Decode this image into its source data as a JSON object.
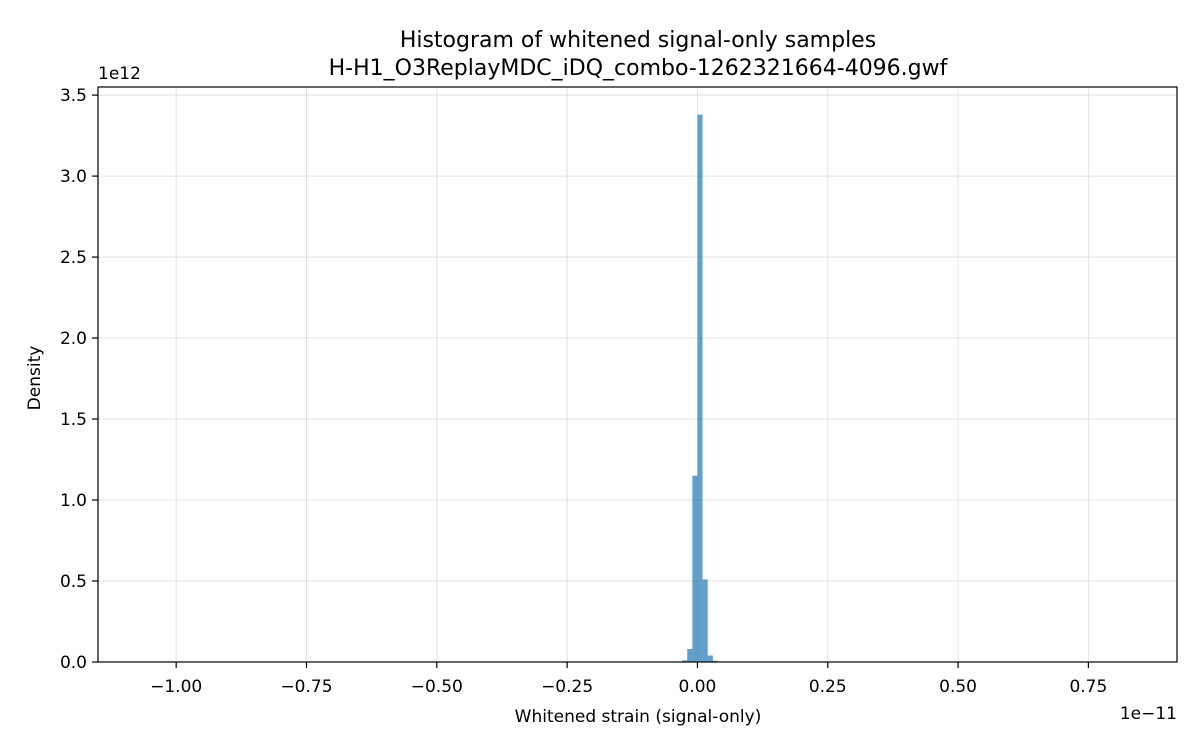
{
  "chart_data": {
    "type": "bar",
    "title": "Histogram of whitened signal-only samples",
    "subtitle": "H-H1_O3ReplayMDC_iDQ_combo-1262321664-4096.gwf",
    "xlabel": "Whitened strain (signal-only)",
    "ylabel": "Density",
    "x_offset_label": "1e−11",
    "y_offset_label": "1e12",
    "xlim": [
      -1.15e-11,
      9.2e-12
    ],
    "ylim": [
      0,
      3550000000000.0
    ],
    "grid": true,
    "x_ticks": [
      {
        "value": -1e-11,
        "label": "−1.00"
      },
      {
        "value": -7.5e-12,
        "label": "−0.75"
      },
      {
        "value": -5e-12,
        "label": "−0.50"
      },
      {
        "value": -2.5e-12,
        "label": "−0.25"
      },
      {
        "value": 0.0,
        "label": "0.00"
      },
      {
        "value": 2.5e-12,
        "label": "0.25"
      },
      {
        "value": 5e-12,
        "label": "0.50"
      },
      {
        "value": 7.5e-12,
        "label": "0.75"
      }
    ],
    "y_ticks": [
      {
        "value": 0.0,
        "label": "0.0"
      },
      {
        "value": 500000000000.0,
        "label": "0.5"
      },
      {
        "value": 1000000000000.0,
        "label": "1.0"
      },
      {
        "value": 1500000000000.0,
        "label": "1.5"
      },
      {
        "value": 2000000000000.0,
        "label": "2.0"
      },
      {
        "value": 2500000000000.0,
        "label": "2.5"
      },
      {
        "value": 3000000000000.0,
        "label": "3.0"
      },
      {
        "value": 3500000000000.0,
        "label": "3.5"
      }
    ],
    "bins": [
      {
        "x0": -2.95e-13,
        "x1": -1.97e-13,
        "density": 10000000000.0
      },
      {
        "x0": -1.97e-13,
        "x1": -9.8e-14,
        "density": 80000000000.0
      },
      {
        "x0": -9.8e-14,
        "x1": 0.0,
        "density": 1150000000000.0
      },
      {
        "x0": 0.0,
        "x1": 9.8e-14,
        "density": 3380000000000.0
      },
      {
        "x0": 9.8e-14,
        "x1": 1.97e-13,
        "density": 510000000000.0
      },
      {
        "x0": 1.97e-13,
        "x1": 2.95e-13,
        "density": 40000000000.0
      },
      {
        "x0": 2.95e-13,
        "x1": 3.93e-13,
        "density": 8000000000.0
      }
    ]
  }
}
